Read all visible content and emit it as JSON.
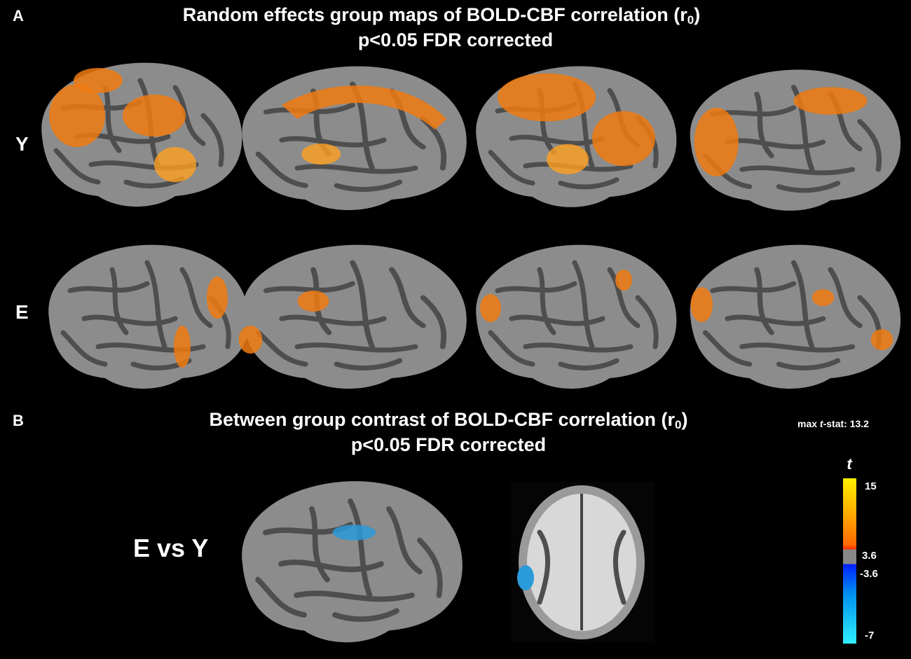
{
  "panel_a": {
    "letter": "A",
    "title": {
      "main": "Random effects group maps of BOLD-CBF correlation  (r",
      "subscript": "0",
      "close": ")"
    },
    "subtitle": "p<0.05 FDR corrected",
    "rows": [
      "Y",
      "E"
    ]
  },
  "panel_b": {
    "letter": "B",
    "title": {
      "main": "Between group contrast of BOLD-CBF correlation (r",
      "subscript": "0",
      "close": ")"
    },
    "subtitle": "p<0.05 FDR corrected",
    "contrast": "E vs Y"
  },
  "max_stat": {
    "prefix": "max",
    "italic": "t",
    "suffix": "-stat:",
    "value": 13.2
  },
  "colorbar": {
    "symbol": "t",
    "ticks": [
      15,
      3.6,
      -3.6,
      -7
    ]
  }
}
